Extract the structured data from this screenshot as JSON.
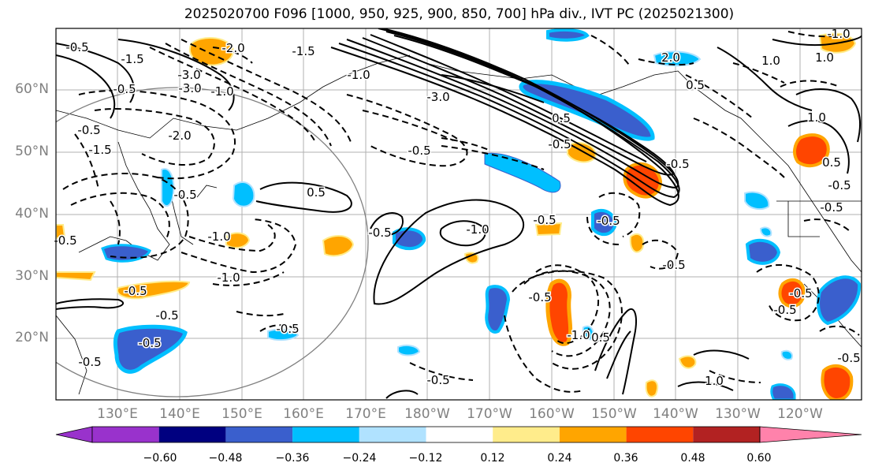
{
  "title": "2025020700 F096 [1000, 950, 925, 900, 850, 700] hPa div., IVT PC (2025021300)",
  "lat_labels": [
    "60°N",
    "50°N",
    "40°N",
    "30°N",
    "20°N"
  ],
  "lon_labels": [
    "130°E",
    "140°E",
    "150°E",
    "160°E",
    "170°E",
    "180°W",
    "170°W",
    "160°W",
    "150°W",
    "140°W",
    "130°W",
    "120°W"
  ],
  "contour_labels": [
    "-2.0",
    "-1.5",
    "-3.0",
    "-1.5",
    "-1.0",
    "-0.5",
    "-0.5",
    "-1.5",
    "-2.0",
    "-3.0",
    "-0.5",
    "-1.0",
    "0.5",
    "-0.5",
    "-1.0",
    "-0.5",
    "-0.5",
    "-0.5",
    "-0.5",
    "-0.5",
    "-1.0",
    "-0.5",
    "-0.5",
    "-0.5",
    "-1.0",
    "1.0",
    "0.5",
    "1.0",
    "-0.5",
    "-0.5",
    "0.5",
    "-1.0",
    "1.0",
    "0.5",
    "-0.5",
    "-0.5",
    "-0.5",
    "-0.5",
    "1.0",
    "-0.5",
    "-0.5",
    "-0.5",
    "-0.5",
    "2.0",
    "-3.0",
    "0.5",
    "-1.0",
    "-0.5",
    "-0.5"
  ],
  "colorbar": {
    "colors": [
      "#9932cc",
      "#000080",
      "#3a5fcd",
      "#00bfff",
      "#b0e2ff",
      "#ffffff",
      "#ffec8b",
      "#ffa500",
      "#ff4500",
      "#b22222",
      "#ff82ab"
    ],
    "tick_labels": [
      "−0.60",
      "−0.48",
      "−0.36",
      "−0.24",
      "−0.12",
      "0.12",
      "0.24",
      "0.36",
      "0.48",
      "0.60"
    ]
  }
}
